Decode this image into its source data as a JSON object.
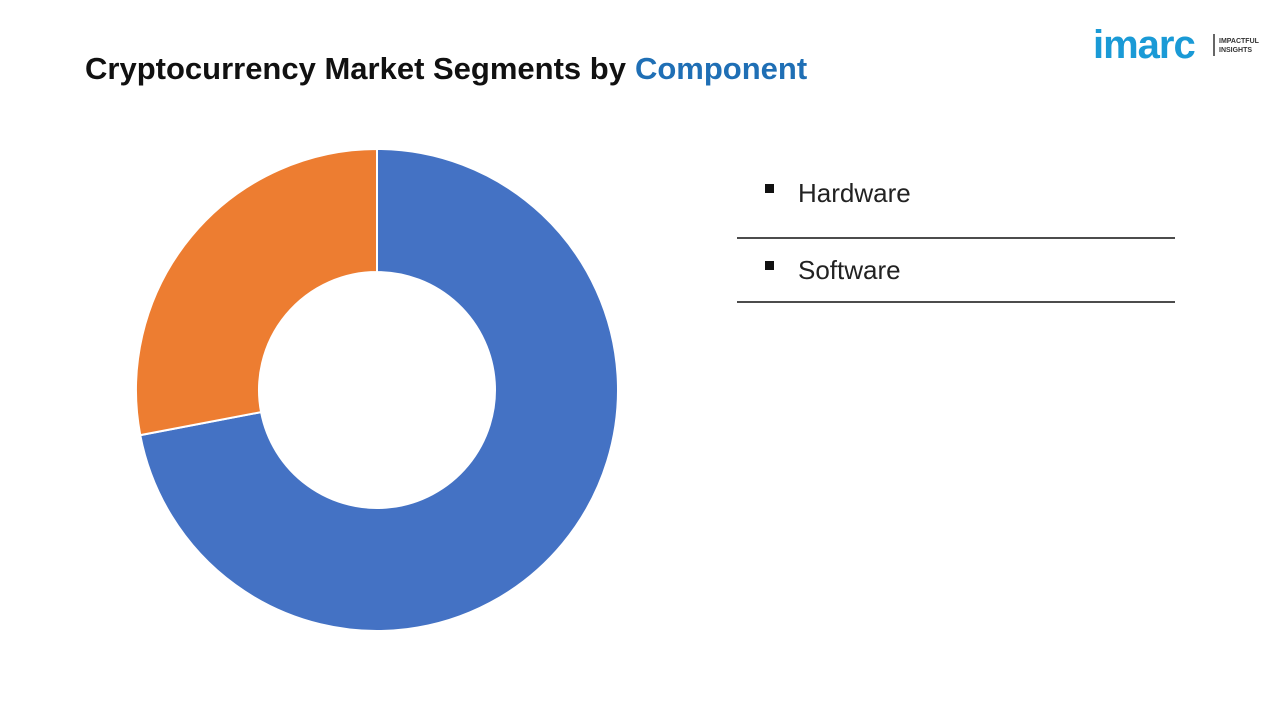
{
  "chart_data": {
    "type": "donut",
    "title": "Cryptocurrency Market Segments by",
    "title_highlight": "Component",
    "categories": [
      "Hardware",
      "Software"
    ],
    "values": [
      72,
      28
    ],
    "colors": [
      "#4472c4",
      "#ed7d31"
    ]
  },
  "logo": {
    "name": "imarc",
    "tagline": [
      "IMPACTFUL",
      "INSIGHTS"
    ]
  }
}
